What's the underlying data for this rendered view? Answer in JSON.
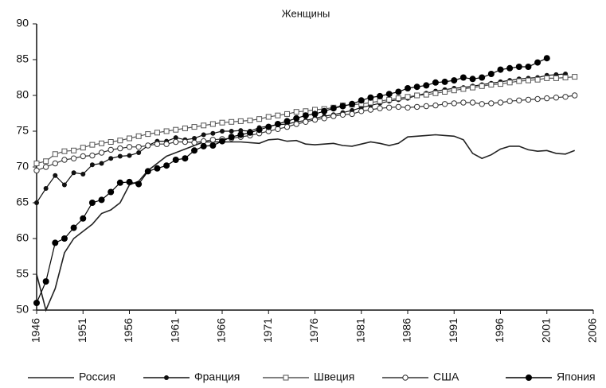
{
  "chart_data": {
    "type": "line",
    "title": "Женщины",
    "x": [
      1946,
      1947,
      1948,
      1949,
      1950,
      1951,
      1952,
      1953,
      1954,
      1955,
      1956,
      1957,
      1958,
      1959,
      1960,
      1961,
      1962,
      1963,
      1964,
      1965,
      1966,
      1967,
      1968,
      1969,
      1970,
      1971,
      1972,
      1973,
      1974,
      1975,
      1976,
      1977,
      1978,
      1979,
      1980,
      1981,
      1982,
      1983,
      1984,
      1985,
      1986,
      1987,
      1988,
      1989,
      1990,
      1991,
      1992,
      1993,
      1994,
      1995,
      1996,
      1997,
      1998,
      1999,
      2000,
      2001,
      2002,
      2003,
      2004
    ],
    "series": [
      {
        "name": "Россия",
        "color": "#222",
        "marker": "none",
        "values": [
          55,
          50,
          53,
          58,
          60,
          61,
          62,
          63.5,
          64,
          65,
          67.5,
          68,
          69.5,
          70.5,
          71.5,
          72,
          72.5,
          73,
          73.5,
          73.5,
          73.5,
          73.5,
          73.5,
          73.4,
          73.3,
          73.8,
          73.9,
          73.6,
          73.7,
          73.2,
          73.1,
          73.2,
          73.3,
          73,
          72.9,
          73.2,
          73.5,
          73.3,
          73,
          73.3,
          74.2,
          74.3,
          74.4,
          74.5,
          74.4,
          74.3,
          73.8,
          71.9,
          71.2,
          71.7,
          72.5,
          72.9,
          72.9,
          72.4,
          72.2,
          72.3,
          71.9,
          71.8,
          72.3
        ]
      },
      {
        "name": "Франция",
        "color": "#111",
        "marker": "dot",
        "values": [
          65,
          67,
          68.8,
          67.5,
          69.2,
          69,
          70.3,
          70.5,
          71.2,
          71.5,
          71.6,
          72,
          73,
          73.6,
          73.6,
          74.1,
          73.8,
          74,
          74.5,
          74.7,
          75,
          75,
          75.1,
          75,
          75.5,
          75.7,
          75.9,
          76,
          76.3,
          76.5,
          76.8,
          77.1,
          77.3,
          77.6,
          77.9,
          78.3,
          78.6,
          78.9,
          79.2,
          79.4,
          79.6,
          80,
          80.3,
          80.6,
          80.8,
          81,
          81.1,
          81.3,
          81.5,
          81.7,
          81.9,
          82.1,
          82.3,
          82.4,
          82.5,
          82.8,
          82.9,
          83,
          null
        ]
      },
      {
        "name": "Швеция",
        "color": "#555",
        "marker": "square",
        "values": [
          70.5,
          70.8,
          71.8,
          72.2,
          72.3,
          72.7,
          73.1,
          73.3,
          73.5,
          73.7,
          74,
          74.3,
          74.6,
          74.8,
          75,
          75.2,
          75.4,
          75.6,
          75.8,
          76,
          76.2,
          76.3,
          76.4,
          76.5,
          76.7,
          77,
          77.2,
          77.4,
          77.7,
          77.8,
          78,
          78.1,
          78.3,
          78.6,
          78.7,
          78.8,
          79,
          79.2,
          79.4,
          79.6,
          79.8,
          80,
          80.1,
          80.3,
          80.5,
          80.7,
          80.9,
          81.1,
          81.3,
          81.5,
          81.6,
          81.8,
          82,
          82.1,
          82.2,
          82.4,
          82.4,
          82.5,
          82.6
        ]
      },
      {
        "name": "США",
        "color": "#333",
        "marker": "circle",
        "values": [
          69.5,
          70,
          70.5,
          71,
          71.2,
          71.5,
          71.6,
          72,
          72.4,
          72.6,
          72.8,
          72.8,
          73,
          73.2,
          73.2,
          73.5,
          73.5,
          73.4,
          73.6,
          73.8,
          73.9,
          74,
          74.2,
          74.4,
          74.7,
          75,
          75.3,
          75.6,
          76,
          76.3,
          76.6,
          76.8,
          77.1,
          77.3,
          77.4,
          77.8,
          78,
          78.2,
          78.3,
          78.4,
          78.3,
          78.4,
          78.5,
          78.6,
          78.8,
          78.9,
          79,
          79,
          78.8,
          78.9,
          79,
          79.2,
          79.3,
          79.4,
          79.5,
          79.6,
          79.7,
          79.8,
          80
        ]
      },
      {
        "name": "Япония",
        "color": "#000",
        "marker": "dot-large",
        "values": [
          51,
          54,
          59.4,
          60,
          61.5,
          62.8,
          65,
          65.4,
          66.5,
          67.8,
          67.9,
          67.6,
          69.4,
          69.8,
          70.2,
          71,
          71.2,
          72.3,
          72.9,
          73,
          73.6,
          74.2,
          74.5,
          74.8,
          75.2,
          75.6,
          76,
          76.4,
          76.8,
          77.2,
          77.4,
          77.8,
          78.2,
          78.5,
          78.8,
          79.3,
          79.7,
          79.9,
          80.2,
          80.5,
          81,
          81.2,
          81.4,
          81.8,
          81.9,
          82.1,
          82.5,
          82.3,
          82.5,
          83,
          83.6,
          83.8,
          84,
          84,
          84.6,
          85.2,
          null,
          null,
          null
        ]
      }
    ],
    "xlim": [
      1946,
      2006
    ],
    "xticks": [
      1946,
      1951,
      1956,
      1961,
      1966,
      1971,
      1976,
      1981,
      1986,
      1991,
      1996,
      2001,
      2006
    ],
    "ylim": [
      50,
      90
    ],
    "yticks": [
      50,
      55,
      60,
      65,
      70,
      75,
      80,
      85,
      90
    ]
  }
}
